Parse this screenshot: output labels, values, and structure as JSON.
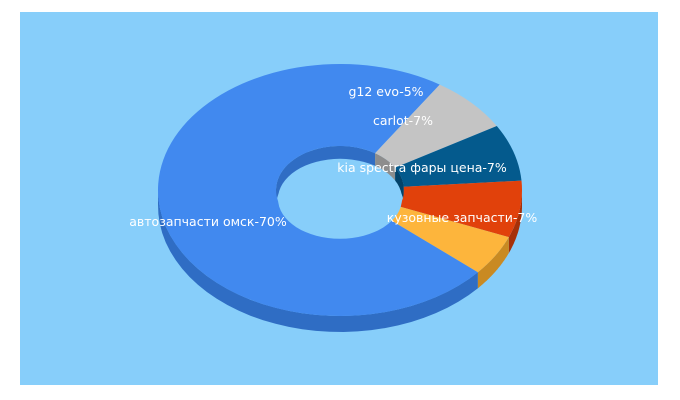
{
  "colors": {
    "background": "#87cefa"
  },
  "chart_data": {
    "type": "pie",
    "donut": true,
    "three_d": true,
    "title": "",
    "slices": [
      {
        "label": "автозапчасти омск",
        "value": 70,
        "display": "автозапчасти омск-70%",
        "color": "#4189ef",
        "side": "#2f6dc4"
      },
      {
        "label": "кузовные запчасти",
        "value": 7,
        "display": "кузовные запчасти-7%",
        "color": "#c4c4c4",
        "side": "#8d8d8d"
      },
      {
        "label": "kia spectra фары цена",
        "value": 7,
        "display": "kia spectra фары цена-7%",
        "color": "#045a8d",
        "side": "#03436a"
      },
      {
        "label": "carlot",
        "value": 7,
        "display": "carlot-7%",
        "color": "#e1410b",
        "side": "#a63008"
      },
      {
        "label": "g12 evo",
        "value": 5,
        "display": "g12 evo-5%",
        "color": "#fdb53c",
        "side": "#c98a22"
      }
    ]
  }
}
